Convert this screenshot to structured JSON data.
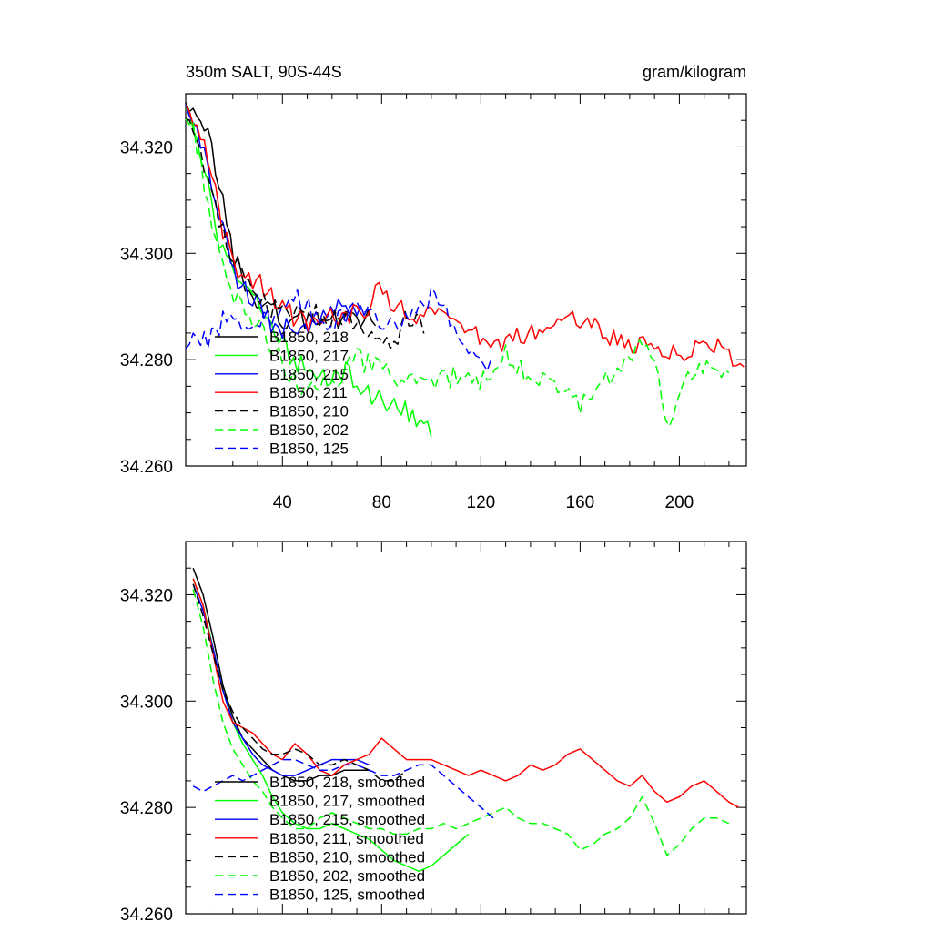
{
  "chart_data": [
    {
      "type": "line",
      "title": "350m SALT, 90S-44S",
      "units": "gram/kilogram",
      "xlim": [
        1,
        227
      ],
      "ylim": [
        34.26,
        34.33
      ],
      "xticks": [
        40,
        80,
        120,
        160,
        200
      ],
      "xtick_labels": [
        "40",
        "80",
        "120",
        "160",
        "200"
      ],
      "yticks": [
        34.26,
        34.28,
        34.3,
        34.32
      ],
      "ytick_labels": [
        "34.260",
        "34.280",
        "34.300",
        "34.320"
      ],
      "legend_position": "lower-left",
      "series": [
        {
          "name": "B1850, 218",
          "color": "#000000",
          "dash": "solid",
          "seed": 11,
          "x": [
            1,
            5,
            10,
            15,
            20,
            25,
            30,
            35,
            40,
            45,
            50,
            55,
            60,
            65,
            70,
            75,
            78
          ],
          "values": [
            34.327,
            34.325,
            34.322,
            34.312,
            34.3,
            34.294,
            34.291,
            34.289,
            34.288,
            34.287,
            34.288,
            34.287,
            34.288,
            34.287,
            34.288,
            34.287,
            34.288
          ]
        },
        {
          "name": "B1850, 217",
          "color": "#00ff00",
          "dash": "solid",
          "seed": 21,
          "x": [
            1,
            5,
            10,
            15,
            20,
            25,
            30,
            35,
            40,
            45,
            50,
            55,
            60,
            65,
            70,
            75,
            80,
            85,
            90,
            95,
            100
          ],
          "values": [
            34.327,
            34.322,
            34.312,
            34.302,
            34.296,
            34.293,
            34.29,
            34.287,
            34.283,
            34.28,
            34.278,
            34.277,
            34.276,
            34.278,
            34.276,
            34.274,
            34.272,
            34.271,
            34.27,
            34.268,
            34.267
          ]
        },
        {
          "name": "B1850, 215",
          "color": "#0000ff",
          "dash": "solid",
          "seed": 31,
          "x": [
            1,
            5,
            10,
            15,
            20,
            25,
            30,
            35,
            40,
            45,
            50,
            55,
            60,
            65,
            70,
            75
          ],
          "values": [
            34.327,
            34.323,
            34.316,
            34.306,
            34.297,
            34.293,
            34.29,
            34.287,
            34.286,
            34.285,
            34.286,
            34.288,
            34.289,
            34.29,
            34.29,
            34.289
          ]
        },
        {
          "name": "B1850, 211",
          "color": "#ff0000",
          "dash": "solid",
          "seed": 41,
          "x": [
            1,
            5,
            10,
            15,
            20,
            25,
            30,
            35,
            40,
            45,
            50,
            55,
            60,
            65,
            70,
            75,
            80,
            85,
            90,
            95,
            100,
            110,
            120,
            130,
            140,
            150,
            160,
            170,
            180,
            190,
            200,
            210,
            220,
            227
          ],
          "values": [
            34.326,
            34.324,
            34.318,
            34.306,
            34.298,
            34.296,
            34.295,
            34.292,
            34.289,
            34.288,
            34.287,
            34.287,
            34.288,
            34.288,
            34.289,
            34.29,
            34.294,
            34.29,
            34.289,
            34.287,
            34.289,
            34.287,
            34.284,
            34.283,
            34.285,
            34.287,
            34.288,
            34.285,
            34.283,
            34.282,
            34.281,
            34.283,
            34.281,
            34.277
          ]
        },
        {
          "name": "B1850, 210",
          "color": "#000000",
          "dash": "dashed",
          "seed": 51,
          "x": [
            1,
            5,
            10,
            15,
            20,
            25,
            30,
            35,
            40,
            45,
            50,
            55,
            60,
            65,
            70,
            75,
            80,
            85,
            90,
            95,
            98
          ],
          "values": [
            34.327,
            34.322,
            34.313,
            34.305,
            34.299,
            34.295,
            34.292,
            34.29,
            34.29,
            34.289,
            34.289,
            34.288,
            34.288,
            34.287,
            34.287,
            34.285,
            34.283,
            34.283,
            34.289,
            34.286,
            34.286
          ]
        },
        {
          "name": "B1850, 202",
          "color": "#00ff00",
          "dash": "dashed",
          "seed": 61,
          "x": [
            1,
            5,
            10,
            15,
            20,
            25,
            30,
            35,
            40,
            45,
            50,
            60,
            70,
            80,
            90,
            100,
            110,
            120,
            130,
            140,
            150,
            160,
            170,
            180,
            186,
            190,
            195,
            200,
            210,
            220
          ],
          "values": [
            34.327,
            34.322,
            34.309,
            34.298,
            34.292,
            34.289,
            34.286,
            34.283,
            34.279,
            34.276,
            34.274,
            34.276,
            34.28,
            34.278,
            34.275,
            34.276,
            34.277,
            34.276,
            34.281,
            34.277,
            34.276,
            34.271,
            34.276,
            34.279,
            34.283,
            34.281,
            34.267,
            34.275,
            34.278,
            34.278
          ]
        },
        {
          "name": "B1850, 125",
          "color": "#0000ff",
          "dash": "dashed",
          "seed": 71,
          "x": [
            1,
            5,
            10,
            15,
            20,
            25,
            30,
            35,
            40,
            45,
            50,
            55,
            60,
            65,
            70,
            75,
            80,
            85,
            90,
            95,
            100,
            105,
            110,
            115,
            120,
            125
          ],
          "values": [
            34.282,
            34.285,
            34.283,
            34.287,
            34.288,
            34.285,
            34.286,
            34.288,
            34.291,
            34.292,
            34.29,
            34.288,
            34.286,
            34.288,
            34.29,
            34.288,
            34.287,
            34.286,
            34.287,
            34.29,
            34.292,
            34.29,
            34.286,
            34.283,
            34.28,
            34.278
          ]
        }
      ]
    },
    {
      "type": "line",
      "title": "",
      "units": "",
      "xlim": [
        1,
        227
      ],
      "ylim": [
        34.26,
        34.33
      ],
      "xticks": [
        40,
        80,
        120,
        160,
        200
      ],
      "xtick_labels": [],
      "yticks": [
        34.26,
        34.28,
        34.3,
        34.32
      ],
      "ytick_labels": [
        "34.260",
        "34.280",
        "34.300",
        "34.320"
      ],
      "legend_position": "lower-left",
      "series": [
        {
          "name": "B1850, 218, smoothed",
          "color": "#000000",
          "dash": "solid",
          "x": [
            4,
            8,
            12,
            16,
            20,
            24,
            28,
            32,
            36,
            40,
            45,
            50,
            55,
            60,
            65,
            70,
            75
          ],
          "values": [
            34.325,
            34.32,
            34.312,
            34.303,
            34.297,
            34.293,
            34.291,
            34.289,
            34.287,
            34.286,
            34.285,
            34.285,
            34.286,
            34.286,
            34.287,
            34.287,
            34.287
          ]
        },
        {
          "name": "B1850, 217, smoothed",
          "color": "#00ff00",
          "dash": "solid",
          "x": [
            4,
            8,
            12,
            16,
            20,
            24,
            28,
            32,
            36,
            40,
            45,
            50,
            55,
            60,
            65,
            70,
            75,
            80,
            85,
            90,
            95,
            100,
            105,
            110,
            115
          ],
          "values": [
            34.323,
            34.318,
            34.31,
            34.302,
            34.296,
            34.292,
            34.289,
            34.286,
            34.282,
            34.279,
            34.277,
            34.276,
            34.276,
            34.277,
            34.276,
            34.275,
            34.274,
            34.272,
            34.27,
            34.269,
            34.268,
            34.269,
            34.271,
            34.273,
            34.275
          ]
        },
        {
          "name": "B1850, 215, smoothed",
          "color": "#0000ff",
          "dash": "solid",
          "x": [
            4,
            8,
            12,
            16,
            20,
            24,
            28,
            32,
            36,
            40,
            45,
            50,
            55,
            60,
            65,
            70,
            75
          ],
          "values": [
            34.322,
            34.317,
            34.31,
            34.302,
            34.296,
            34.293,
            34.29,
            34.288,
            34.287,
            34.286,
            34.286,
            34.287,
            34.288,
            34.289,
            34.289,
            34.289,
            34.288
          ]
        },
        {
          "name": "B1850, 211, smoothed",
          "color": "#ff0000",
          "dash": "solid",
          "x": [
            4,
            8,
            12,
            16,
            20,
            24,
            28,
            32,
            36,
            40,
            45,
            50,
            55,
            60,
            65,
            70,
            75,
            80,
            85,
            90,
            95,
            100,
            105,
            110,
            115,
            120,
            125,
            130,
            135,
            140,
            145,
            150,
            155,
            160,
            165,
            170,
            175,
            180,
            185,
            190,
            195,
            200,
            205,
            210,
            215,
            220,
            224
          ],
          "values": [
            34.323,
            34.318,
            34.309,
            34.3,
            34.296,
            34.295,
            34.294,
            34.292,
            34.29,
            34.289,
            34.292,
            34.29,
            34.287,
            34.286,
            34.288,
            34.289,
            34.29,
            34.293,
            34.291,
            34.289,
            34.289,
            34.289,
            34.288,
            34.287,
            34.286,
            34.287,
            34.286,
            34.285,
            34.286,
            34.288,
            34.287,
            34.288,
            34.29,
            34.291,
            34.289,
            34.287,
            34.285,
            34.284,
            34.286,
            34.283,
            34.281,
            34.282,
            34.284,
            34.285,
            34.283,
            34.281,
            34.28
          ]
        },
        {
          "name": "B1850, 210, smoothed",
          "color": "#000000",
          "dash": "dashed",
          "x": [
            4,
            8,
            12,
            16,
            20,
            24,
            28,
            32,
            36,
            40,
            45,
            50,
            55,
            60,
            65,
            70,
            75,
            80,
            85,
            90
          ],
          "values": [
            34.322,
            34.316,
            34.309,
            34.302,
            34.298,
            34.295,
            34.293,
            34.291,
            34.29,
            34.29,
            34.291,
            34.29,
            34.288,
            34.288,
            34.289,
            34.288,
            34.287,
            34.285,
            34.285,
            34.287
          ]
        },
        {
          "name": "B1850, 202, smoothed",
          "color": "#00ff00",
          "dash": "dashed",
          "x": [
            4,
            8,
            12,
            16,
            20,
            24,
            28,
            32,
            36,
            40,
            45,
            50,
            55,
            60,
            65,
            70,
            75,
            80,
            85,
            90,
            95,
            100,
            105,
            110,
            115,
            120,
            125,
            130,
            135,
            140,
            145,
            150,
            155,
            160,
            165,
            170,
            175,
            180,
            185,
            190,
            195,
            200,
            205,
            210,
            215,
            220
          ],
          "values": [
            34.321,
            34.314,
            34.304,
            34.296,
            34.291,
            34.288,
            34.285,
            34.283,
            34.28,
            34.278,
            34.276,
            34.276,
            34.278,
            34.279,
            34.278,
            34.277,
            34.276,
            34.276,
            34.275,
            34.275,
            34.276,
            34.276,
            34.277,
            34.276,
            34.277,
            34.278,
            34.279,
            34.28,
            34.278,
            34.277,
            34.277,
            34.276,
            34.275,
            34.272,
            34.273,
            34.275,
            34.276,
            34.278,
            34.282,
            34.277,
            34.271,
            34.273,
            34.276,
            34.278,
            34.278,
            34.277
          ]
        },
        {
          "name": "B1850, 125, smoothed",
          "color": "#0000ff",
          "dash": "dashed",
          "x": [
            4,
            8,
            12,
            16,
            20,
            24,
            28,
            32,
            36,
            40,
            45,
            50,
            55,
            60,
            65,
            70,
            75,
            80,
            85,
            90,
            95,
            100,
            105,
            110,
            115,
            120,
            125
          ],
          "values": [
            34.284,
            34.283,
            34.284,
            34.285,
            34.286,
            34.285,
            34.286,
            34.287,
            34.288,
            34.289,
            34.289,
            34.288,
            34.287,
            34.287,
            34.288,
            34.288,
            34.287,
            34.286,
            34.286,
            34.287,
            34.288,
            34.288,
            34.286,
            34.284,
            34.282,
            34.28,
            34.278
          ]
        }
      ]
    }
  ]
}
